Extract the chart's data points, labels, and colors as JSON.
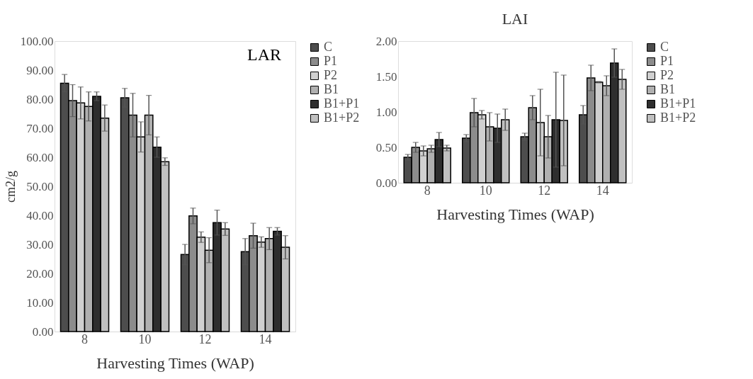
{
  "chart_data": [
    {
      "type": "bar",
      "title": "LAR",
      "xlabel": "Harvesting Times (WAP)",
      "ylabel": "cm2/g",
      "categories": [
        "8",
        "10",
        "12",
        "14"
      ],
      "series": [
        {
          "name": "C",
          "color": "#4d4d4d",
          "values": [
            85.5,
            80.5,
            26.5,
            27.5
          ],
          "errors": [
            3,
            3.2,
            3.5,
            4.5
          ]
        },
        {
          "name": "P1",
          "color": "#8c8c8c",
          "values": [
            79.5,
            74.5,
            39.8,
            33
          ],
          "errors": [
            5.5,
            7.5,
            2.7,
            4.3
          ]
        },
        {
          "name": "P2",
          "color": "#d0d0d0",
          "values": [
            78.7,
            67,
            32.5,
            30.8
          ],
          "errors": [
            5.5,
            5.2,
            1.8,
            1.8
          ]
        },
        {
          "name": "B1",
          "color": "#b0b0b0",
          "values": [
            77.5,
            74.5,
            28,
            32
          ],
          "errors": [
            5,
            6.8,
            4.3,
            3.8
          ]
        },
        {
          "name": "B1+P1",
          "color": "#2e2e2e",
          "values": [
            81,
            63.5,
            37.5,
            34.5
          ],
          "errors": [
            1.5,
            3.5,
            4.3,
            1.3
          ]
        },
        {
          "name": "B1+P2",
          "color": "#c0c0c0",
          "values": [
            73.5,
            58.5,
            35.3,
            29
          ],
          "errors": [
            4.5,
            1.3,
            2.2,
            4
          ]
        }
      ],
      "ylim": [
        0,
        100
      ],
      "yticks": [
        {
          "value": 0,
          "label": "0.00"
        },
        {
          "value": 10,
          "label": "10.00"
        },
        {
          "value": 20,
          "label": "20.00"
        },
        {
          "value": 30,
          "label": "30.00"
        },
        {
          "value": 40,
          "label": "40.00"
        },
        {
          "value": 50,
          "label": "50.00"
        },
        {
          "value": 60,
          "label": "60.00"
        },
        {
          "value": 70,
          "label": "70.00"
        },
        {
          "value": 80,
          "label": "80.00"
        },
        {
          "value": 90,
          "label": "90.00"
        },
        {
          "value": 100,
          "label": "100.00"
        }
      ],
      "grid": false,
      "legend": "right"
    },
    {
      "type": "bar",
      "title": "LAI",
      "xlabel": "Harvesting Times (WAP)",
      "categories": [
        "8",
        "10",
        "12",
        "14"
      ],
      "series": [
        {
          "name": "C",
          "color": "#4d4d4d",
          "values": [
            0.36,
            0.63,
            0.65,
            0.96
          ],
          "errors": [
            0.04,
            0.05,
            0.05,
            0.13
          ]
        },
        {
          "name": "P1",
          "color": "#8c8c8c",
          "values": [
            0.5,
            0.99,
            1.06,
            1.48
          ],
          "errors": [
            0.07,
            0.2,
            0.17,
            0.18
          ]
        },
        {
          "name": "P2",
          "color": "#d0d0d0",
          "values": [
            0.45,
            0.96,
            0.85,
            1.42
          ],
          "errors": [
            0.07,
            0.06,
            0.47,
            0.01
          ]
        },
        {
          "name": "B1",
          "color": "#b0b0b0",
          "values": [
            0.48,
            0.79,
            0.65,
            1.37
          ],
          "errors": [
            0.05,
            0.2,
            0.3,
            0.14
          ]
        },
        {
          "name": "B1+P1",
          "color": "#2e2e2e",
          "values": [
            0.61,
            0.77,
            0.89,
            1.69
          ],
          "errors": [
            0.1,
            0.2,
            0.67,
            0.2
          ]
        },
        {
          "name": "B1+P2",
          "color": "#c0c0c0",
          "values": [
            0.49,
            0.89,
            0.88,
            1.46
          ],
          "errors": [
            0.04,
            0.15,
            0.64,
            0.14
          ]
        }
      ],
      "ylim": [
        0,
        2
      ],
      "yticks": [
        {
          "value": 0,
          "label": "0.00"
        },
        {
          "value": 0.5,
          "label": "0.50"
        },
        {
          "value": 1,
          "label": "1.00"
        },
        {
          "value": 1.5,
          "label": "1.50"
        },
        {
          "value": 2,
          "label": "2.00"
        }
      ],
      "grid": false,
      "legend": "right"
    }
  ]
}
